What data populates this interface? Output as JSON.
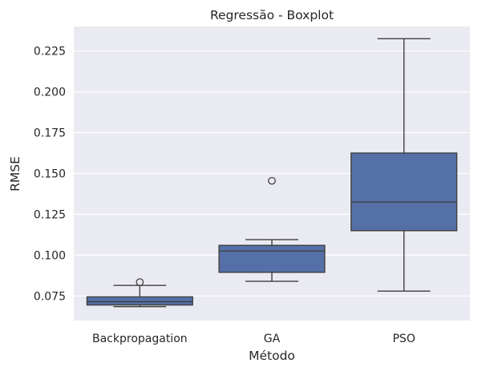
{
  "chart_data": {
    "type": "boxplot",
    "title": "Regressão - Boxplot",
    "xlabel": "Método",
    "ylabel": "RMSE",
    "ylim": [
      0.06,
      0.24
    ],
    "yticks": [
      "0.075",
      "0.100",
      "0.125",
      "0.150",
      "0.175",
      "0.200",
      "0.225"
    ],
    "grid": true,
    "box_color": "#5470a6",
    "categories": [
      "Backpropagation",
      "GA",
      "PSO"
    ],
    "boxes": [
      {
        "category": "Backpropagation",
        "whisker_low": 0.0685,
        "q1": 0.0695,
        "median": 0.0715,
        "q3": 0.0745,
        "whisker_high": 0.0815,
        "outliers": [
          0.0835
        ]
      },
      {
        "category": "GA",
        "whisker_low": 0.084,
        "q1": 0.0895,
        "median": 0.1025,
        "q3": 0.106,
        "whisker_high": 0.1095,
        "outliers": [
          0.1455
        ]
      },
      {
        "category": "PSO",
        "whisker_low": 0.078,
        "q1": 0.115,
        "median": 0.1325,
        "q3": 0.1625,
        "whisker_high": 0.2325,
        "outliers": []
      }
    ]
  }
}
